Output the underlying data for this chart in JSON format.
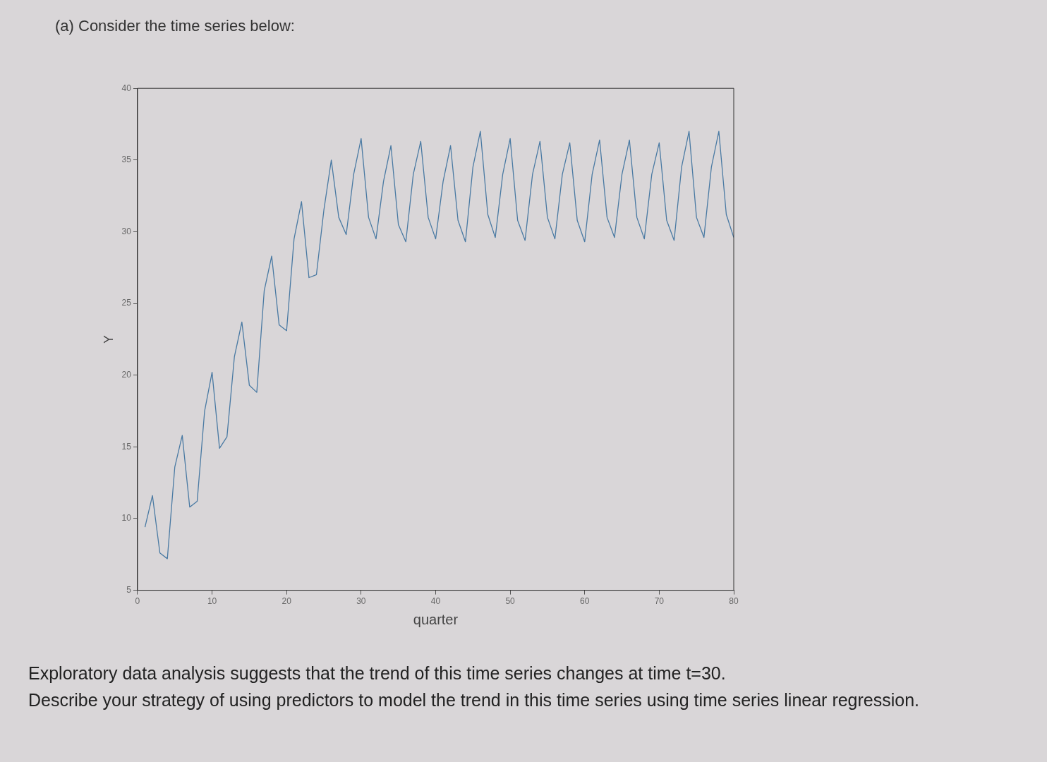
{
  "chart_data": {
    "type": "line",
    "title": "(a) Consider the time series below:",
    "xlabel": "quarter",
    "ylabel": "Y",
    "x": [
      1,
      2,
      3,
      4,
      5,
      6,
      7,
      8,
      9,
      10,
      11,
      12,
      13,
      14,
      15,
      16,
      17,
      18,
      19,
      20,
      21,
      22,
      23,
      24,
      25,
      26,
      27,
      28,
      29,
      30,
      31,
      32,
      33,
      34,
      35,
      36,
      37,
      38,
      39,
      40,
      41,
      42,
      43,
      44,
      45,
      46,
      47,
      48,
      49,
      50,
      51,
      52,
      53,
      54,
      55,
      56,
      57,
      58,
      59,
      60,
      61,
      62,
      63,
      64,
      65,
      66,
      67,
      68,
      69,
      70,
      71,
      72,
      73,
      74,
      75,
      76,
      77,
      78,
      79,
      80
    ],
    "series": [
      {
        "color": "#4a7aa3",
        "values": [
          9.4,
          11.6,
          7.6,
          7.2,
          13.6,
          15.8,
          10.8,
          11.2,
          17.5,
          20.2,
          14.9,
          15.7,
          21.3,
          23.7,
          19.3,
          18.8,
          25.9,
          28.3,
          23.5,
          23.1,
          29.5,
          32.1,
          26.8,
          27.0,
          31.5,
          35,
          31,
          29.8,
          34,
          36.5,
          31,
          29.5,
          33.5,
          36,
          30.5,
          29.3,
          34,
          36.3,
          31,
          29.5,
          33.5,
          36,
          30.8,
          29.3,
          34.5,
          37,
          31.2,
          29.6,
          34,
          36.5,
          30.8,
          29.4,
          34,
          36.3,
          31,
          29.5,
          34,
          36.2,
          30.8,
          29.3,
          34,
          36.4,
          31,
          29.6,
          34,
          36.4,
          31,
          29.5,
          34,
          36.2,
          30.8,
          29.4,
          34.5,
          37,
          31,
          29.6,
          34.5,
          37,
          31.2,
          29.6
        ]
      }
    ],
    "xlim": [
      0,
      80
    ],
    "xticks": [
      0,
      10,
      20,
      30,
      40,
      50,
      60,
      70,
      80
    ],
    "ylim": [
      5,
      40
    ],
    "yticks": [
      5,
      10,
      15,
      20,
      25,
      30,
      35,
      40
    ],
    "grid": false,
    "legend": false,
    "marker": "none",
    "line_style": "solid",
    "annotations": [
      "Exploratory data analysis suggests that the trend of this time series changes at time t=30.",
      "Describe your strategy of using predictors to model the trend in this time series using time series linear regression."
    ]
  }
}
